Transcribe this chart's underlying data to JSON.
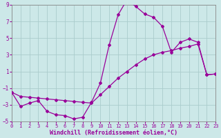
{
  "xlabel": "Windchill (Refroidissement éolien,°C)",
  "line_color": "#990099",
  "bg_color": "#cce8e8",
  "grid_color": "#aacccc",
  "curve1_x": [
    0,
    1,
    2,
    3,
    4,
    5,
    6,
    7,
    8,
    9,
    10,
    11,
    12,
    13,
    14,
    15,
    16,
    17,
    18,
    19,
    20,
    21,
    22,
    23
  ],
  "curve1_y": [
    -1.5,
    -3.2,
    -2.8,
    -2.5,
    -3.8,
    -4.2,
    -4.3,
    -4.7,
    -4.5,
    -2.7,
    -0.4,
    4.2,
    7.8,
    9.6,
    8.8,
    7.9,
    7.5,
    6.4,
    3.3,
    4.5,
    4.9,
    4.5,
    0.6,
    0.7
  ],
  "curve2_x": [
    0,
    1,
    2,
    3,
    4,
    5,
    6,
    7,
    8,
    9,
    10,
    11,
    12,
    13,
    14,
    15,
    16,
    17,
    18,
    19,
    20,
    21,
    22,
    23
  ],
  "curve2_y": [
    -1.5,
    -2.0,
    -2.1,
    -2.2,
    -2.3,
    -2.4,
    -2.5,
    -2.6,
    -2.7,
    -2.8,
    -1.8,
    -0.8,
    0.2,
    1.0,
    1.8,
    2.5,
    3.0,
    3.3,
    3.5,
    3.8,
    4.0,
    4.3,
    0.6,
    0.7
  ],
  "xlim": [
    0,
    23
  ],
  "ylim": [
    -5,
    9
  ],
  "yticks": [
    -5,
    -3,
    -1,
    1,
    3,
    5,
    7,
    9
  ],
  "xticks": [
    0,
    1,
    2,
    3,
    4,
    5,
    6,
    7,
    8,
    9,
    10,
    11,
    12,
    13,
    14,
    15,
    16,
    17,
    18,
    19,
    20,
    21,
    22,
    23
  ]
}
